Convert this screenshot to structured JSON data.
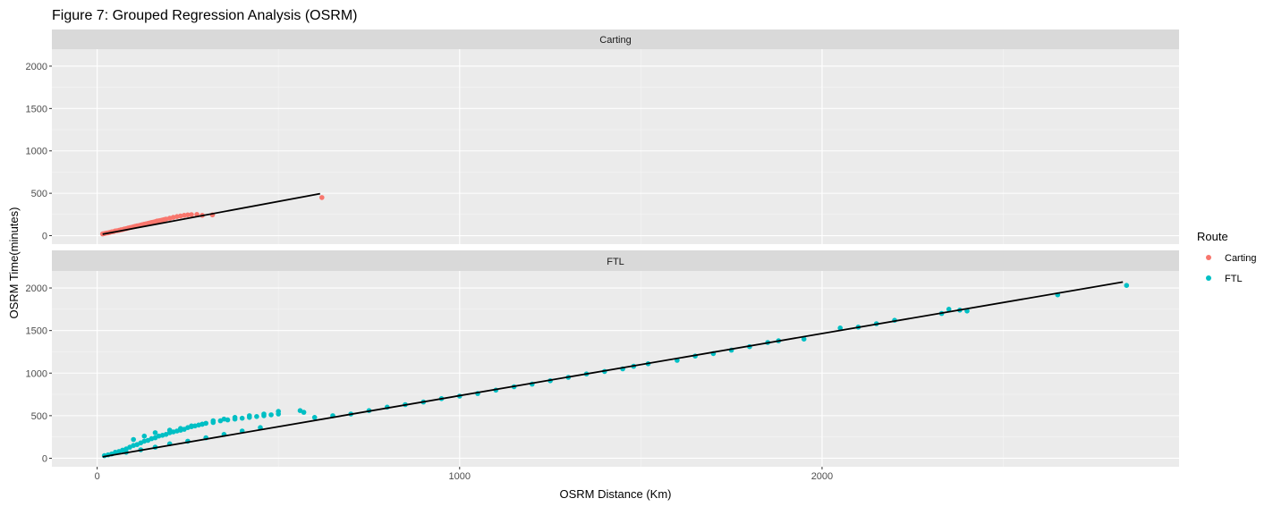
{
  "chart_data": {
    "type": "scatter",
    "title": "Figure 7: Grouped Regression Analysis (OSRM)",
    "xlabel": "OSRM Distance (Km)",
    "ylabel": "OSRM Time(minutes)",
    "xlim": [
      -125,
      2985
    ],
    "ylim": [
      -100,
      2200
    ],
    "x_ticks": [
      0,
      1000,
      2000
    ],
    "y_ticks": [
      0,
      500,
      1000,
      1500,
      2000
    ],
    "grid": true,
    "legend": {
      "title": "Route",
      "position": "right",
      "entries": [
        {
          "name": "Carting",
          "color": "#F8766D"
        },
        {
          "name": "FTL",
          "color": "#00BFC4"
        }
      ]
    },
    "facets": [
      {
        "label": "Carting",
        "color": "#F8766D",
        "line": {
          "x": [
            15,
            615
          ],
          "y": [
            17,
            495
          ]
        },
        "points": [
          [
            15,
            20
          ],
          [
            20,
            25
          ],
          [
            25,
            30
          ],
          [
            30,
            33
          ],
          [
            35,
            38
          ],
          [
            40,
            45
          ],
          [
            45,
            48
          ],
          [
            50,
            55
          ],
          [
            55,
            58
          ],
          [
            60,
            62
          ],
          [
            65,
            68
          ],
          [
            70,
            72
          ],
          [
            75,
            78
          ],
          [
            80,
            82
          ],
          [
            85,
            90
          ],
          [
            90,
            95
          ],
          [
            95,
            98
          ],
          [
            100,
            105
          ],
          [
            105,
            110
          ],
          [
            110,
            115
          ],
          [
            115,
            118
          ],
          [
            120,
            125
          ],
          [
            125,
            130
          ],
          [
            130,
            135
          ],
          [
            135,
            140
          ],
          [
            140,
            145
          ],
          [
            145,
            150
          ],
          [
            150,
            155
          ],
          [
            155,
            160
          ],
          [
            160,
            165
          ],
          [
            165,
            172
          ],
          [
            170,
            175
          ],
          [
            175,
            180
          ],
          [
            180,
            185
          ],
          [
            185,
            190
          ],
          [
            190,
            195
          ],
          [
            200,
            205
          ],
          [
            210,
            215
          ],
          [
            220,
            225
          ],
          [
            230,
            232
          ],
          [
            240,
            240
          ],
          [
            250,
            245
          ],
          [
            260,
            248
          ],
          [
            275,
            250
          ],
          [
            290,
            240
          ],
          [
            318,
            245
          ],
          [
            620,
            450
          ]
        ]
      },
      {
        "label": "FTL",
        "color": "#00BFC4",
        "line": {
          "x": [
            15,
            2830
          ],
          "y": [
            17,
            2070
          ]
        },
        "points": [
          [
            20,
            30
          ],
          [
            30,
            40
          ],
          [
            40,
            50
          ],
          [
            50,
            70
          ],
          [
            60,
            80
          ],
          [
            70,
            95
          ],
          [
            80,
            110
          ],
          [
            90,
            130
          ],
          [
            100,
            150
          ],
          [
            110,
            160
          ],
          [
            120,
            180
          ],
          [
            130,
            200
          ],
          [
            140,
            210
          ],
          [
            150,
            230
          ],
          [
            160,
            240
          ],
          [
            170,
            260
          ],
          [
            180,
            270
          ],
          [
            190,
            280
          ],
          [
            200,
            300
          ],
          [
            210,
            310
          ],
          [
            220,
            320
          ],
          [
            230,
            330
          ],
          [
            240,
            340
          ],
          [
            250,
            360
          ],
          [
            260,
            370
          ],
          [
            270,
            380
          ],
          [
            280,
            390
          ],
          [
            290,
            400
          ],
          [
            300,
            410
          ],
          [
            320,
            420
          ],
          [
            340,
            440
          ],
          [
            360,
            450
          ],
          [
            380,
            460
          ],
          [
            400,
            470
          ],
          [
            420,
            480
          ],
          [
            440,
            490
          ],
          [
            460,
            500
          ],
          [
            480,
            510
          ],
          [
            500,
            520
          ],
          [
            100,
            220
          ],
          [
            130,
            260
          ],
          [
            160,
            300
          ],
          [
            200,
            330
          ],
          [
            230,
            350
          ],
          [
            260,
            380
          ],
          [
            290,
            400
          ],
          [
            320,
            440
          ],
          [
            350,
            460
          ],
          [
            380,
            480
          ],
          [
            420,
            500
          ],
          [
            460,
            520
          ],
          [
            500,
            550
          ],
          [
            560,
            560
          ],
          [
            570,
            540
          ],
          [
            80,
            70
          ],
          [
            120,
            100
          ],
          [
            160,
            130
          ],
          [
            200,
            170
          ],
          [
            250,
            200
          ],
          [
            300,
            240
          ],
          [
            350,
            280
          ],
          [
            400,
            320
          ],
          [
            450,
            360
          ],
          [
            600,
            480
          ],
          [
            650,
            500
          ],
          [
            700,
            520
          ],
          [
            750,
            560
          ],
          [
            800,
            600
          ],
          [
            850,
            630
          ],
          [
            900,
            660
          ],
          [
            950,
            700
          ],
          [
            1000,
            730
          ],
          [
            1050,
            760
          ],
          [
            1100,
            800
          ],
          [
            1150,
            840
          ],
          [
            1200,
            870
          ],
          [
            1250,
            910
          ],
          [
            1300,
            950
          ],
          [
            1350,
            990
          ],
          [
            1400,
            1020
          ],
          [
            1450,
            1050
          ],
          [
            1480,
            1080
          ],
          [
            1520,
            1110
          ],
          [
            1600,
            1150
          ],
          [
            1650,
            1200
          ],
          [
            1700,
            1230
          ],
          [
            1750,
            1270
          ],
          [
            1800,
            1310
          ],
          [
            1850,
            1360
          ],
          [
            1880,
            1380
          ],
          [
            1950,
            1400
          ],
          [
            2050,
            1530
          ],
          [
            2100,
            1540
          ],
          [
            2150,
            1580
          ],
          [
            2200,
            1620
          ],
          [
            2330,
            1700
          ],
          [
            2350,
            1750
          ],
          [
            2380,
            1740
          ],
          [
            2400,
            1730
          ],
          [
            2650,
            1920
          ],
          [
            2840,
            2030
          ]
        ]
      }
    ]
  }
}
